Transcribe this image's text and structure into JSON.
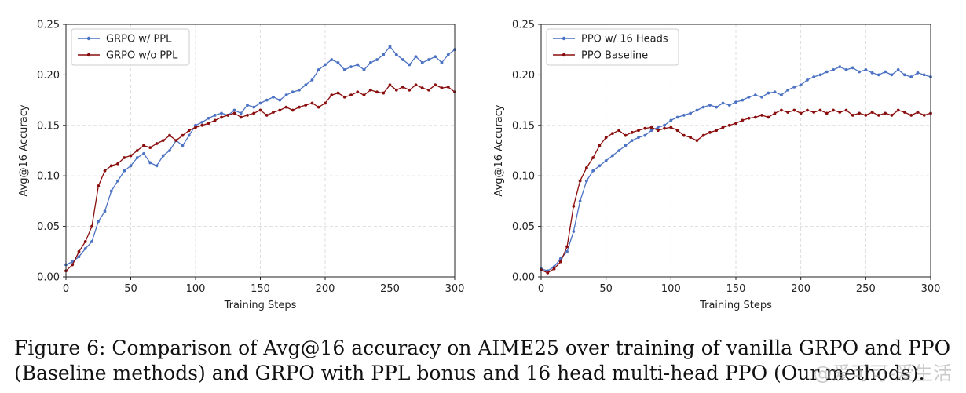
{
  "caption": {
    "line1": "Figure 6: Comparison of Avg@16 accuracy on AIME25 over training of vanilla GRPO and PPO",
    "line2": "(Baseline methods) and GRPO with PPL bonus and 16 head multi-head PPO (Our methods)."
  },
  "watermark": "@爱可可-爱生活",
  "chart_data": [
    {
      "type": "line",
      "title": "",
      "xlabel": "Training Steps",
      "ylabel": "Avg@16 Accuracy",
      "xlim": [
        0,
        300
      ],
      "ylim": [
        0,
        0.25
      ],
      "xticks": [
        0,
        50,
        100,
        150,
        200,
        250,
        300
      ],
      "yticks": [
        "0.00",
        "0.05",
        "0.10",
        "0.15",
        "0.20",
        "0.25"
      ],
      "grid": true,
      "legend": "top-left",
      "series": [
        {
          "name": "GRPO w/ PPL",
          "color": "#4c72c4",
          "points": [
            [
              0,
              0.012
            ],
            [
              5,
              0.015
            ],
            [
              10,
              0.02
            ],
            [
              15,
              0.028
            ],
            [
              20,
              0.035
            ],
            [
              25,
              0.055
            ],
            [
              30,
              0.065
            ],
            [
              35,
              0.085
            ],
            [
              40,
              0.095
            ],
            [
              45,
              0.105
            ],
            [
              50,
              0.11
            ],
            [
              55,
              0.118
            ],
            [
              60,
              0.122
            ],
            [
              65,
              0.113
            ],
            [
              70,
              0.11
            ],
            [
              75,
              0.12
            ],
            [
              80,
              0.125
            ],
            [
              85,
              0.135
            ],
            [
              90,
              0.13
            ],
            [
              95,
              0.14
            ],
            [
              100,
              0.15
            ],
            [
              105,
              0.153
            ],
            [
              110,
              0.157
            ],
            [
              115,
              0.16
            ],
            [
              120,
              0.162
            ],
            [
              125,
              0.16
            ],
            [
              130,
              0.165
            ],
            [
              135,
              0.162
            ],
            [
              140,
              0.17
            ],
            [
              145,
              0.168
            ],
            [
              150,
              0.172
            ],
            [
              155,
              0.175
            ],
            [
              160,
              0.178
            ],
            [
              165,
              0.175
            ],
            [
              170,
              0.18
            ],
            [
              175,
              0.183
            ],
            [
              180,
              0.185
            ],
            [
              185,
              0.19
            ],
            [
              190,
              0.195
            ],
            [
              195,
              0.205
            ],
            [
              200,
              0.21
            ],
            [
              205,
              0.215
            ],
            [
              210,
              0.212
            ],
            [
              215,
              0.205
            ],
            [
              220,
              0.208
            ],
            [
              225,
              0.21
            ],
            [
              230,
              0.205
            ],
            [
              235,
              0.212
            ],
            [
              240,
              0.215
            ],
            [
              245,
              0.22
            ],
            [
              250,
              0.228
            ],
            [
              255,
              0.22
            ],
            [
              260,
              0.215
            ],
            [
              265,
              0.21
            ],
            [
              270,
              0.218
            ],
            [
              275,
              0.212
            ],
            [
              280,
              0.215
            ],
            [
              285,
              0.218
            ],
            [
              290,
              0.212
            ],
            [
              295,
              0.22
            ],
            [
              300,
              0.225
            ]
          ]
        },
        {
          "name": "GRPO w/o PPL",
          "color": "#8b0e0e",
          "points": [
            [
              0,
              0.006
            ],
            [
              5,
              0.012
            ],
            [
              10,
              0.025
            ],
            [
              15,
              0.035
            ],
            [
              20,
              0.05
            ],
            [
              25,
              0.09
            ],
            [
              30,
              0.105
            ],
            [
              35,
              0.11
            ],
            [
              40,
              0.112
            ],
            [
              45,
              0.118
            ],
            [
              50,
              0.12
            ],
            [
              55,
              0.125
            ],
            [
              60,
              0.13
            ],
            [
              65,
              0.128
            ],
            [
              70,
              0.132
            ],
            [
              75,
              0.135
            ],
            [
              80,
              0.14
            ],
            [
              85,
              0.135
            ],
            [
              90,
              0.14
            ],
            [
              95,
              0.145
            ],
            [
              100,
              0.148
            ],
            [
              105,
              0.15
            ],
            [
              110,
              0.152
            ],
            [
              115,
              0.155
            ],
            [
              120,
              0.158
            ],
            [
              125,
              0.16
            ],
            [
              130,
              0.162
            ],
            [
              135,
              0.158
            ],
            [
              140,
              0.16
            ],
            [
              145,
              0.162
            ],
            [
              150,
              0.165
            ],
            [
              155,
              0.16
            ],
            [
              160,
              0.163
            ],
            [
              165,
              0.165
            ],
            [
              170,
              0.168
            ],
            [
              175,
              0.165
            ],
            [
              180,
              0.168
            ],
            [
              185,
              0.17
            ],
            [
              190,
              0.172
            ],
            [
              195,
              0.168
            ],
            [
              200,
              0.172
            ],
            [
              205,
              0.18
            ],
            [
              210,
              0.182
            ],
            [
              215,
              0.178
            ],
            [
              220,
              0.18
            ],
            [
              225,
              0.183
            ],
            [
              230,
              0.18
            ],
            [
              235,
              0.185
            ],
            [
              240,
              0.183
            ],
            [
              245,
              0.182
            ],
            [
              250,
              0.19
            ],
            [
              255,
              0.185
            ],
            [
              260,
              0.188
            ],
            [
              265,
              0.185
            ],
            [
              270,
              0.19
            ],
            [
              275,
              0.187
            ],
            [
              280,
              0.185
            ],
            [
              285,
              0.19
            ],
            [
              290,
              0.187
            ],
            [
              295,
              0.188
            ],
            [
              300,
              0.183
            ]
          ]
        }
      ]
    },
    {
      "type": "line",
      "title": "",
      "xlabel": "Training Steps",
      "ylabel": "Avg@16 Accuracy",
      "xlim": [
        0,
        300
      ],
      "ylim": [
        0,
        0.25
      ],
      "xticks": [
        0,
        50,
        100,
        150,
        200,
        250,
        300
      ],
      "yticks": [
        "0.00",
        "0.05",
        "0.10",
        "0.15",
        "0.20",
        "0.25"
      ],
      "grid": true,
      "legend": "top-left",
      "series": [
        {
          "name": "PPO w/ 16 Heads",
          "color": "#4c72c4",
          "points": [
            [
              0,
              0.008
            ],
            [
              5,
              0.006
            ],
            [
              10,
              0.01
            ],
            [
              15,
              0.018
            ],
            [
              20,
              0.025
            ],
            [
              25,
              0.045
            ],
            [
              30,
              0.075
            ],
            [
              35,
              0.095
            ],
            [
              40,
              0.105
            ],
            [
              45,
              0.11
            ],
            [
              50,
              0.115
            ],
            [
              55,
              0.12
            ],
            [
              60,
              0.125
            ],
            [
              65,
              0.13
            ],
            [
              70,
              0.135
            ],
            [
              75,
              0.138
            ],
            [
              80,
              0.14
            ],
            [
              85,
              0.145
            ],
            [
              90,
              0.148
            ],
            [
              95,
              0.15
            ],
            [
              100,
              0.155
            ],
            [
              105,
              0.158
            ],
            [
              110,
              0.16
            ],
            [
              115,
              0.162
            ],
            [
              120,
              0.165
            ],
            [
              125,
              0.168
            ],
            [
              130,
              0.17
            ],
            [
              135,
              0.168
            ],
            [
              140,
              0.172
            ],
            [
              145,
              0.17
            ],
            [
              150,
              0.173
            ],
            [
              155,
              0.175
            ],
            [
              160,
              0.178
            ],
            [
              165,
              0.18
            ],
            [
              170,
              0.178
            ],
            [
              175,
              0.182
            ],
            [
              180,
              0.183
            ],
            [
              185,
              0.18
            ],
            [
              190,
              0.185
            ],
            [
              195,
              0.188
            ],
            [
              200,
              0.19
            ],
            [
              205,
              0.195
            ],
            [
              210,
              0.198
            ],
            [
              215,
              0.2
            ],
            [
              220,
              0.203
            ],
            [
              225,
              0.205
            ],
            [
              230,
              0.208
            ],
            [
              235,
              0.205
            ],
            [
              240,
              0.207
            ],
            [
              245,
              0.203
            ],
            [
              250,
              0.205
            ],
            [
              255,
              0.202
            ],
            [
              260,
              0.2
            ],
            [
              265,
              0.203
            ],
            [
              270,
              0.2
            ],
            [
              275,
              0.205
            ],
            [
              280,
              0.2
            ],
            [
              285,
              0.198
            ],
            [
              290,
              0.202
            ],
            [
              295,
              0.2
            ],
            [
              300,
              0.198
            ]
          ]
        },
        {
          "name": "PPO Baseline",
          "color": "#8b0e0e",
          "points": [
            [
              0,
              0.007
            ],
            [
              5,
              0.004
            ],
            [
              10,
              0.008
            ],
            [
              15,
              0.015
            ],
            [
              20,
              0.03
            ],
            [
              25,
              0.07
            ],
            [
              30,
              0.095
            ],
            [
              35,
              0.108
            ],
            [
              40,
              0.118
            ],
            [
              45,
              0.13
            ],
            [
              50,
              0.138
            ],
            [
              55,
              0.142
            ],
            [
              60,
              0.145
            ],
            [
              65,
              0.14
            ],
            [
              70,
              0.143
            ],
            [
              75,
              0.145
            ],
            [
              80,
              0.147
            ],
            [
              85,
              0.148
            ],
            [
              90,
              0.145
            ],
            [
              95,
              0.147
            ],
            [
              100,
              0.148
            ],
            [
              105,
              0.145
            ],
            [
              110,
              0.14
            ],
            [
              115,
              0.138
            ],
            [
              120,
              0.135
            ],
            [
              125,
              0.14
            ],
            [
              130,
              0.143
            ],
            [
              135,
              0.145
            ],
            [
              140,
              0.148
            ],
            [
              145,
              0.15
            ],
            [
              150,
              0.152
            ],
            [
              155,
              0.155
            ],
            [
              160,
              0.157
            ],
            [
              165,
              0.158
            ],
            [
              170,
              0.16
            ],
            [
              175,
              0.158
            ],
            [
              180,
              0.162
            ],
            [
              185,
              0.165
            ],
            [
              190,
              0.163
            ],
            [
              195,
              0.165
            ],
            [
              200,
              0.162
            ],
            [
              205,
              0.165
            ],
            [
              210,
              0.163
            ],
            [
              215,
              0.165
            ],
            [
              220,
              0.162
            ],
            [
              225,
              0.165
            ],
            [
              230,
              0.163
            ],
            [
              235,
              0.165
            ],
            [
              240,
              0.16
            ],
            [
              245,
              0.162
            ],
            [
              250,
              0.16
            ],
            [
              255,
              0.163
            ],
            [
              260,
              0.16
            ],
            [
              265,
              0.162
            ],
            [
              270,
              0.16
            ],
            [
              275,
              0.165
            ],
            [
              280,
              0.163
            ],
            [
              285,
              0.16
            ],
            [
              290,
              0.163
            ],
            [
              295,
              0.16
            ],
            [
              300,
              0.162
            ]
          ]
        }
      ]
    }
  ]
}
